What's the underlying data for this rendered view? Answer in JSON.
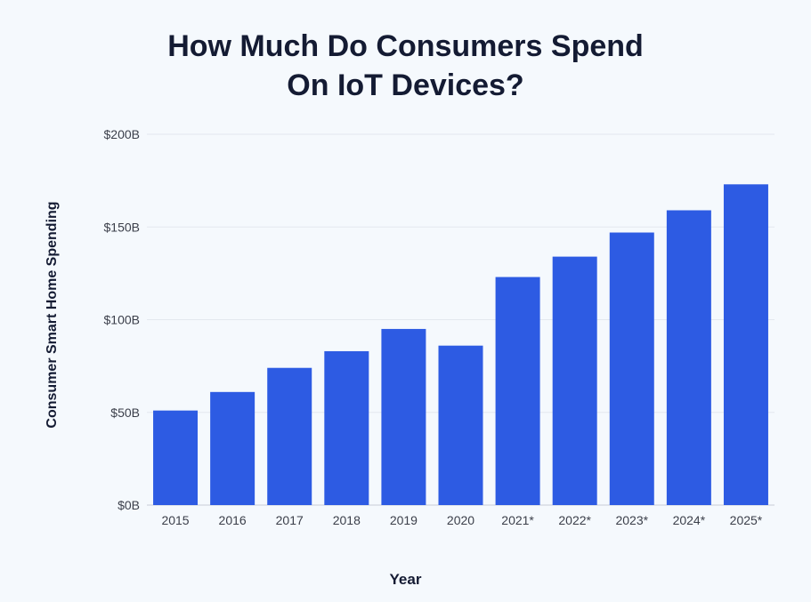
{
  "title_lines": [
    "How Much Do Consumers Spend",
    "On IoT Devices?"
  ],
  "chart_data": {
    "type": "bar",
    "title": "How Much Do Consumers Spend On IoT Devices?",
    "xlabel": "Year",
    "ylabel": "Consumer Smart Home Spending",
    "categories": [
      "2015",
      "2016",
      "2017",
      "2018",
      "2019",
      "2020",
      "2021*",
      "2022*",
      "2023*",
      "2024*",
      "2025*"
    ],
    "values": [
      51,
      61,
      74,
      83,
      95,
      86,
      123,
      134,
      147,
      159,
      173
    ],
    "unit": "Billion USD",
    "ylim": [
      0,
      200
    ],
    "yticks": [
      0,
      50,
      100,
      150,
      200
    ],
    "ytick_labels": [
      "$0B",
      "$50B",
      "$100B",
      "$150B",
      "$200B"
    ],
    "bar_color": "#2d5be3",
    "grid": true,
    "legend": "none"
  }
}
